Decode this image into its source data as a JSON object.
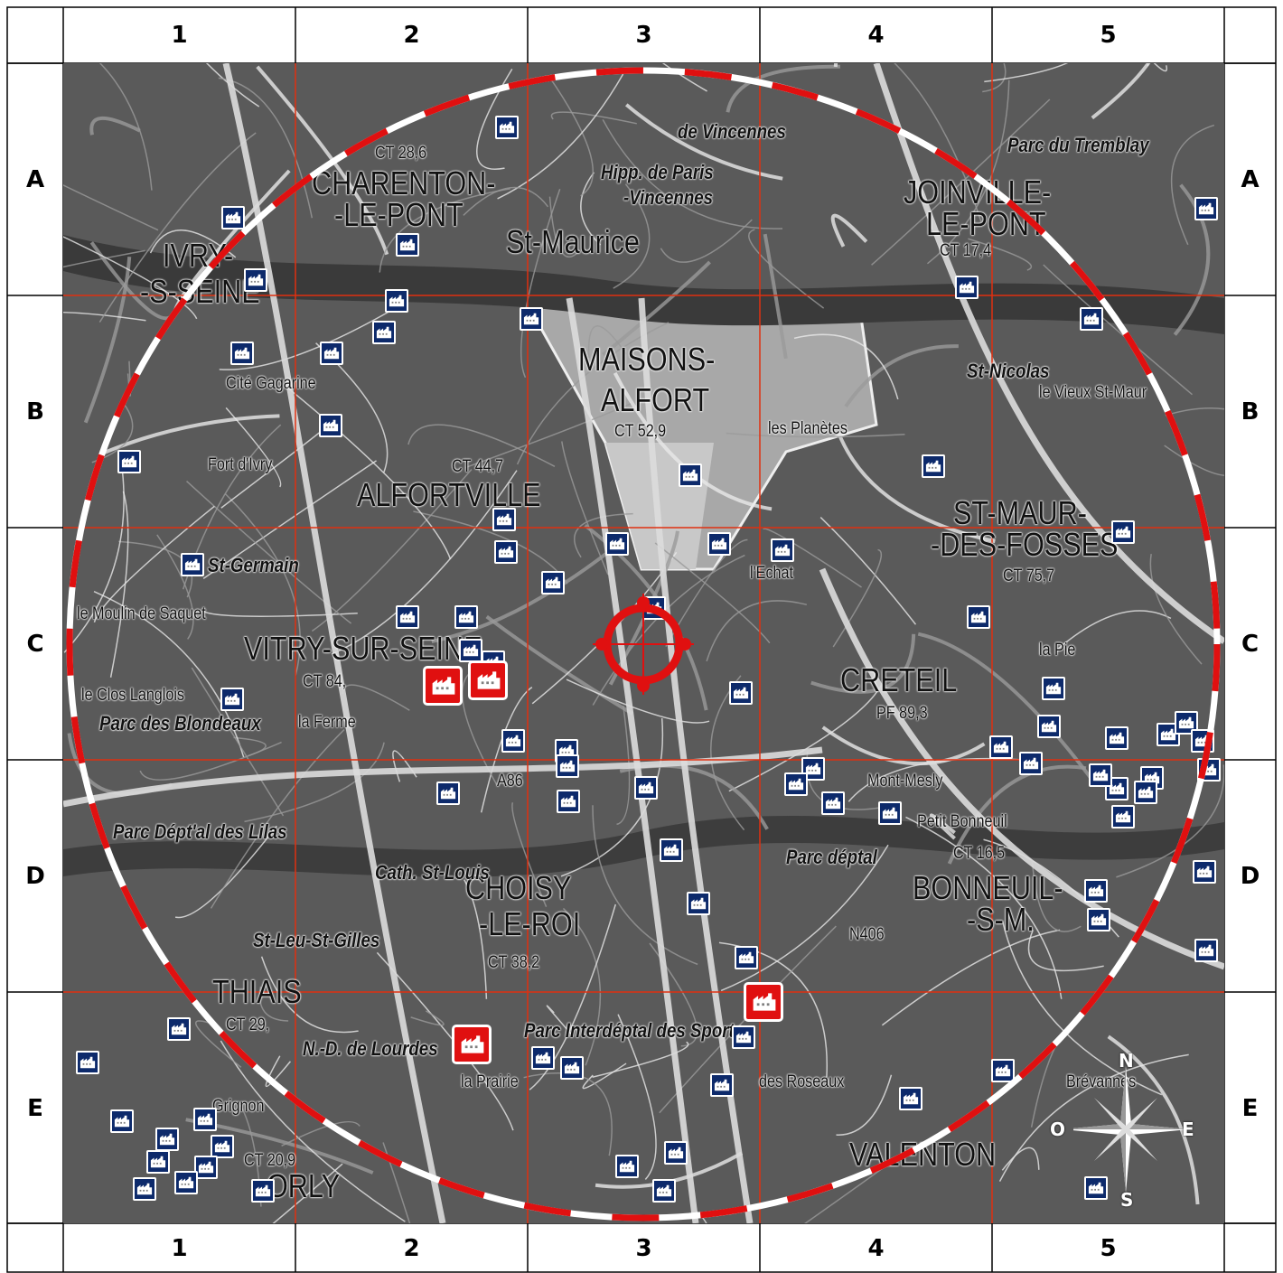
{
  "grid": {
    "columns": [
      "1",
      "2",
      "3",
      "4",
      "5"
    ],
    "rows": [
      "A",
      "B",
      "C",
      "D",
      "E"
    ]
  },
  "colors": {
    "grid_lines": "#e03010",
    "circle_red": "#e01010",
    "circle_white": "#ffffff",
    "icon_blue": "#0d2a6b",
    "icon_red": "#e01010",
    "map_background": "#555555"
  },
  "places": [
    {
      "id": "ivry",
      "text": "IVRY-",
      "size": "big"
    },
    {
      "id": "ivry2",
      "text": "-S-SEINE",
      "size": "big"
    },
    {
      "id": "charenton",
      "text": "CHARENTON-",
      "size": "big"
    },
    {
      "id": "lepont",
      "text": "-LE-PONT",
      "size": "big"
    },
    {
      "id": "stmaurice",
      "text": "St-Maurice",
      "size": "big"
    },
    {
      "id": "joinville",
      "text": "JOINVILLE-",
      "size": "big"
    },
    {
      "id": "joinville2",
      "text": "LE-PONT",
      "size": "big"
    },
    {
      "id": "maisons",
      "text": "MAISONS-",
      "size": "big"
    },
    {
      "id": "alfort",
      "text": "ALFORT",
      "size": "big"
    },
    {
      "id": "alfortville",
      "text": "ALFORTVILLE",
      "size": "big"
    },
    {
      "id": "stmaur",
      "text": "ST-MAUR-",
      "size": "big"
    },
    {
      "id": "desfosses",
      "text": "-DES-FOSSES",
      "size": "big"
    },
    {
      "id": "vitry",
      "text": "VITRY-SUR-SEINE",
      "size": "big"
    },
    {
      "id": "creteil",
      "text": "CRETEIL",
      "size": "big"
    },
    {
      "id": "choisy",
      "text": "CHOISY",
      "size": "big"
    },
    {
      "id": "leroi",
      "text": "-LE-ROI",
      "size": "big"
    },
    {
      "id": "bonneuil",
      "text": "BONNEUIL-",
      "size": "big"
    },
    {
      "id": "bonneuil2",
      "text": "-S-M.",
      "size": "big"
    },
    {
      "id": "thiais",
      "text": "THIAIS",
      "size": "big"
    },
    {
      "id": "valenton",
      "text": "VALENTON",
      "size": "big"
    },
    {
      "id": "orly",
      "text": "ORLY",
      "size": "big"
    },
    {
      "id": "vincennes",
      "text": "de Vincennes",
      "size": "med"
    },
    {
      "id": "hipp",
      "text": "Hipp. de Paris",
      "size": "med"
    },
    {
      "id": "hipp2",
      "text": "-Vincennes",
      "size": "med"
    },
    {
      "id": "tremblay",
      "text": "Parc du Tremblay",
      "size": "med"
    },
    {
      "id": "parcblondeaux",
      "text": "Parc des Blondeaux",
      "size": "med"
    },
    {
      "id": "parclilas",
      "text": "Parc Dépt'al des Lilas",
      "size": "med"
    },
    {
      "id": "parcinter",
      "text": "Parc Interdéptal des Sports",
      "size": "med"
    },
    {
      "id": "parcdeptal",
      "text": "Parc déptal",
      "size": "med"
    },
    {
      "id": "stnicolas",
      "text": "St-Nicolas",
      "size": "med"
    },
    {
      "id": "stgermain",
      "text": "St-Germain",
      "size": "med"
    },
    {
      "id": "cath",
      "text": "Cath. St-Louis",
      "size": "med"
    },
    {
      "id": "stleu",
      "text": "St-Leu-St-Gilles",
      "size": "med"
    },
    {
      "id": "ndlourdes",
      "text": "N.-D. de Lourdes",
      "size": "med"
    },
    {
      "id": "gagarine",
      "text": "Cité Gagarine",
      "size": "sm"
    },
    {
      "id": "fortivry",
      "text": "Fort d'Ivry",
      "size": "sm"
    },
    {
      "id": "planetes",
      "text": "les Planètes",
      "size": "sm"
    },
    {
      "id": "echat",
      "text": "l'Echat",
      "size": "sm"
    },
    {
      "id": "mesly",
      "text": "Mont-Mesly",
      "size": "sm"
    },
    {
      "id": "petitbonneuil",
      "text": "Petit Bonneuil",
      "size": "sm"
    },
    {
      "id": "vieux",
      "text": "le Vieux St-Maur",
      "size": "sm"
    },
    {
      "id": "lapie",
      "text": "la Pie",
      "size": "sm"
    },
    {
      "id": "closlanglois",
      "text": "le Clos Langlois",
      "size": "sm"
    },
    {
      "id": "moulin",
      "text": "le Moulin de Saquet",
      "size": "sm"
    },
    {
      "id": "laferme",
      "text": "la Ferme",
      "size": "sm"
    },
    {
      "id": "roseaux",
      "text": "des Roseaux",
      "size": "sm"
    },
    {
      "id": "brevannes",
      "text": "Brévannes",
      "size": "sm"
    },
    {
      "id": "grignon",
      "text": "Grignon",
      "size": "sm"
    },
    {
      "id": "laprairie",
      "text": "la Prairie",
      "size": "sm"
    },
    {
      "id": "ct28",
      "text": "CT 28,6",
      "size": "sm"
    },
    {
      "id": "ct52",
      "text": "CT 52,9",
      "size": "sm"
    },
    {
      "id": "ct44",
      "text": "CT 44,7",
      "size": "sm"
    },
    {
      "id": "ct84",
      "text": "CT 84,",
      "size": "sm"
    },
    {
      "id": "ct75",
      "text": "CT 75,7",
      "size": "sm"
    },
    {
      "id": "ct38",
      "text": "CT 38,2",
      "size": "sm"
    },
    {
      "id": "ct16",
      "text": "CT 16,5",
      "size": "sm"
    },
    {
      "id": "ct20",
      "text": "CT 20,9",
      "size": "sm"
    },
    {
      "id": "ct29",
      "text": "CT 29,",
      "size": "sm"
    },
    {
      "id": "ct17",
      "text": "CT 17,4",
      "size": "sm"
    },
    {
      "id": "pf89",
      "text": "PF 89,3",
      "size": "sm"
    },
    {
      "id": "a86",
      "text": "A86",
      "size": "sm"
    },
    {
      "id": "n406",
      "text": "N406",
      "size": "sm"
    }
  ],
  "compass": {
    "north": "N",
    "south": "S",
    "east": "E",
    "west": "O"
  }
}
